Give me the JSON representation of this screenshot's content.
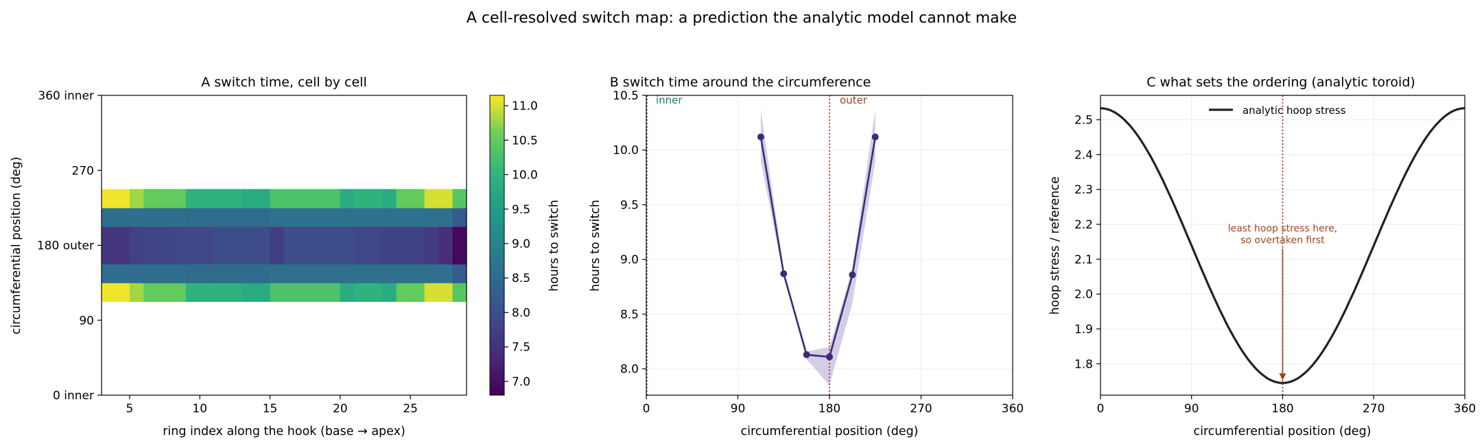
{
  "figure_title": "A cell-resolved switch map: a prediction the analytic model cannot make",
  "colors": {
    "inner": "#1a7a74",
    "outer": "#a0441a",
    "line_b": "#3e2a78",
    "band_b": "#cbc4e2",
    "line_c": "#222222",
    "grid": "#ebebeb"
  },
  "chart_data": [
    {
      "type": "heatmap",
      "title": "A  switch time, cell by cell",
      "xlabel": "ring index along the hook (base → apex)",
      "ylabel": "circumferential position (deg)",
      "xlim": [
        3,
        29
      ],
      "ylim": [
        0,
        360
      ],
      "x_tick_values": [
        5,
        10,
        15,
        20,
        25
      ],
      "x_tick_labels": [
        "5",
        "10",
        "15",
        "20",
        "25"
      ],
      "y_tick_values": [
        0,
        90,
        180,
        270,
        360
      ],
      "y_tick_labels": [
        "0 inner",
        "90",
        "180 outer",
        "270",
        "360 inner"
      ],
      "colormap": "viridis",
      "colorbar_label": "hours to switch",
      "colorbar_range": [
        6.8,
        11.15
      ],
      "colorbar_ticks": [
        7.0,
        7.5,
        8.0,
        8.5,
        9.0,
        9.5,
        10.0,
        10.5,
        11.0
      ],
      "colorbar_tick_labels": [
        "7.0",
        "7.5",
        "8.0",
        "8.5",
        "9.0",
        "9.5",
        "10.0",
        "10.5",
        "11.0"
      ],
      "ring_indices": [
        3,
        4,
        5,
        6,
        7,
        8,
        9,
        10,
        11,
        12,
        13,
        14,
        15,
        16,
        17,
        18,
        19,
        20,
        21,
        22,
        23,
        24,
        25,
        26,
        27,
        28
      ],
      "row_bins_deg": [
        [
          112.5,
          135
        ],
        [
          135,
          157.5
        ],
        [
          157.5,
          180
        ],
        [
          180,
          202.5
        ],
        [
          202.5,
          225
        ],
        [
          225,
          247.5
        ]
      ],
      "values": [
        [
          11.1,
          11.1,
          10.8,
          10.5,
          10.5,
          10.5,
          9.95,
          9.95,
          9.95,
          9.95,
          9.8,
          9.8,
          10.3,
          10.3,
          10.3,
          10.3,
          10.3,
          9.8,
          9.95,
          9.95,
          9.8,
          10.5,
          10.5,
          11.0,
          11.0,
          10.4
        ],
        [
          8.55,
          8.55,
          8.55,
          8.55,
          8.55,
          8.55,
          8.5,
          8.5,
          8.5,
          8.5,
          8.5,
          8.5,
          8.6,
          8.6,
          8.6,
          8.6,
          8.6,
          8.6,
          8.6,
          8.6,
          8.6,
          8.6,
          8.6,
          8.6,
          8.6,
          8.2
        ],
        [
          7.55,
          7.55,
          7.75,
          7.8,
          7.8,
          7.85,
          7.85,
          7.85,
          7.95,
          7.95,
          7.95,
          7.95,
          7.7,
          7.95,
          7.95,
          7.95,
          7.95,
          7.95,
          7.85,
          7.85,
          7.75,
          7.75,
          7.75,
          7.65,
          7.45,
          6.9
        ],
        [
          7.55,
          7.55,
          7.75,
          7.8,
          7.8,
          7.85,
          7.85,
          7.85,
          7.95,
          7.95,
          7.95,
          7.95,
          7.7,
          7.95,
          7.95,
          7.95,
          7.95,
          7.95,
          7.85,
          7.85,
          7.75,
          7.75,
          7.75,
          7.65,
          7.45,
          6.9
        ],
        [
          8.55,
          8.55,
          8.55,
          8.55,
          8.55,
          8.55,
          8.5,
          8.5,
          8.5,
          8.5,
          8.5,
          8.5,
          8.6,
          8.6,
          8.6,
          8.6,
          8.6,
          8.6,
          8.6,
          8.6,
          8.6,
          8.6,
          8.6,
          8.6,
          8.6,
          8.2
        ],
        [
          11.1,
          11.1,
          10.8,
          10.5,
          10.5,
          10.5,
          9.95,
          9.95,
          9.95,
          9.95,
          9.8,
          9.8,
          10.3,
          10.3,
          10.3,
          10.3,
          10.3,
          9.8,
          9.95,
          9.95,
          9.8,
          10.5,
          10.5,
          11.0,
          11.0,
          10.4
        ]
      ]
    },
    {
      "type": "line",
      "title": "B  switch time around the circumference",
      "xlabel": "circumferential position (deg)",
      "ylabel": "hours to switch",
      "xlim": [
        0,
        360
      ],
      "ylim": [
        7.76,
        10.5
      ],
      "x_tick_values": [
        0,
        90,
        180,
        270,
        360
      ],
      "x_tick_labels": [
        "0",
        "90",
        "180",
        "270",
        "360"
      ],
      "y_tick_values": [
        8.0,
        8.5,
        9.0,
        9.5,
        10.0,
        10.5
      ],
      "y_tick_labels": [
        "8.0",
        "8.5",
        "9.0",
        "9.5",
        "10.0",
        "10.5"
      ],
      "grid": true,
      "x": [
        112.5,
        135,
        157.5,
        180,
        202.5,
        225
      ],
      "y": [
        10.12,
        8.87,
        8.13,
        8.11,
        8.86,
        10.12
      ],
      "band_lower": [
        9.9,
        8.84,
        8.09,
        7.85,
        8.6,
        9.9
      ],
      "band_upper": [
        10.37,
        8.9,
        8.16,
        8.2,
        8.92,
        10.37
      ],
      "ref_lines": [
        {
          "x": 0,
          "label": "inner"
        },
        {
          "x": 180,
          "label": "outer"
        }
      ]
    },
    {
      "type": "line",
      "title": "C  what sets the ordering (analytic toroid)",
      "xlabel": "circumferential position (deg)",
      "ylabel": "hoop stress / reference",
      "xlim": [
        0,
        360
      ],
      "ylim": [
        1.71,
        2.57
      ],
      "x_tick_values": [
        0,
        90,
        180,
        270,
        360
      ],
      "x_tick_labels": [
        "0",
        "90",
        "180",
        "270",
        "360"
      ],
      "y_tick_values": [
        1.8,
        1.9,
        2.0,
        2.1,
        2.2,
        2.3,
        2.4,
        2.5
      ],
      "y_tick_labels": [
        "1.8",
        "1.9",
        "2.0",
        "2.1",
        "2.2",
        "2.3",
        "2.4",
        "2.5"
      ],
      "grid": true,
      "series": [
        {
          "name": "analytic hoop stress",
          "max": 2.533,
          "min": 1.745
        }
      ],
      "legend": "top-center",
      "annotation": {
        "text_lines": [
          "least hoop stress here,",
          "so overtaken first"
        ],
        "x": 180,
        "text_y": 2.17,
        "arrow_to_y": 1.745
      },
      "ref_line_x": 180
    }
  ]
}
